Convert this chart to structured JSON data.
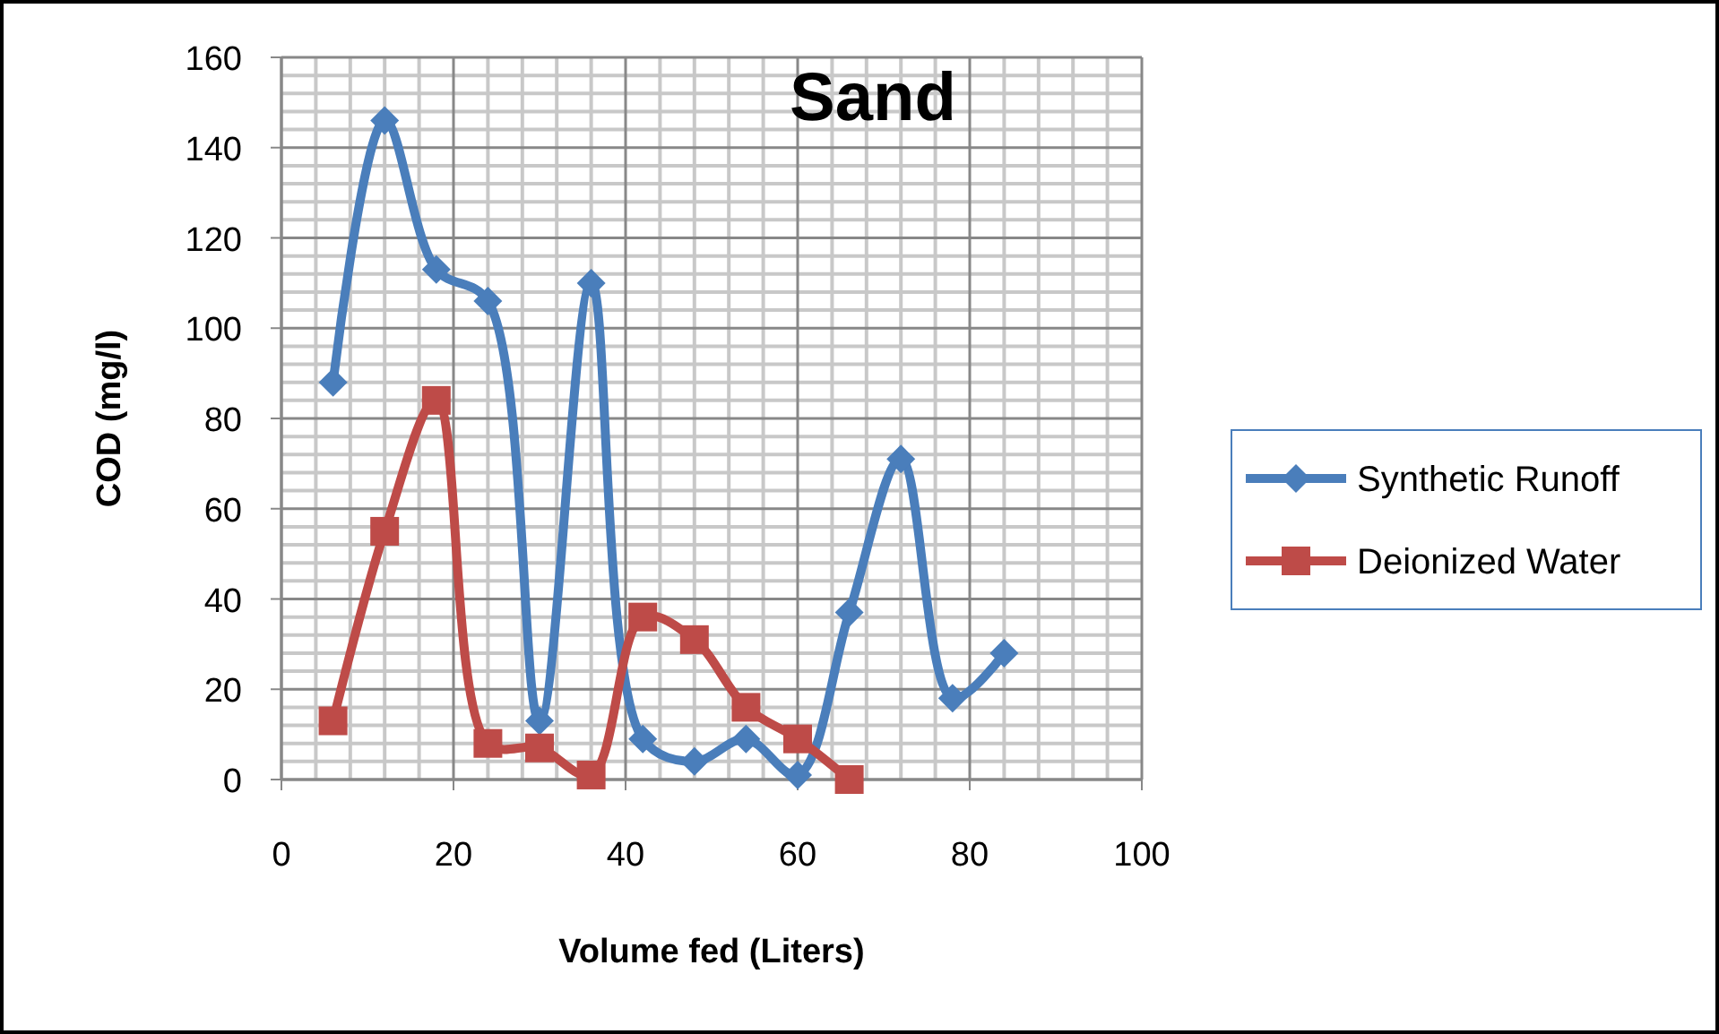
{
  "chart_data": {
    "type": "line",
    "title": "Sand",
    "xlabel": "Volume fed (Liters)",
    "ylabel": "COD (mg/l)",
    "xlim": [
      0,
      100
    ],
    "xticks": [
      0,
      20,
      40,
      60,
      80,
      100
    ],
    "ylim": [
      0,
      160
    ],
    "yticks": [
      0,
      20,
      40,
      60,
      80,
      100,
      120,
      140,
      160
    ],
    "grid": true,
    "legend": "right",
    "line_style": "solid",
    "series": [
      {
        "name": "Synthetic Runoff",
        "color": "#4a7ebb",
        "marker": "diamond",
        "x": [
          6,
          12,
          18,
          24,
          30,
          36,
          42,
          48,
          54,
          60,
          66,
          72,
          78,
          84
        ],
        "values": [
          88,
          146,
          113,
          106,
          13,
          110,
          9,
          4,
          9,
          1,
          37,
          71,
          18,
          28
        ]
      },
      {
        "name": "Deionized Water",
        "color": "#be4b48",
        "marker": "square",
        "x": [
          6,
          12,
          18,
          24,
          30,
          36,
          42,
          48,
          54,
          60,
          66
        ],
        "values": [
          13,
          55,
          84,
          8,
          7,
          1,
          36,
          31,
          16,
          9,
          0
        ]
      }
    ]
  }
}
